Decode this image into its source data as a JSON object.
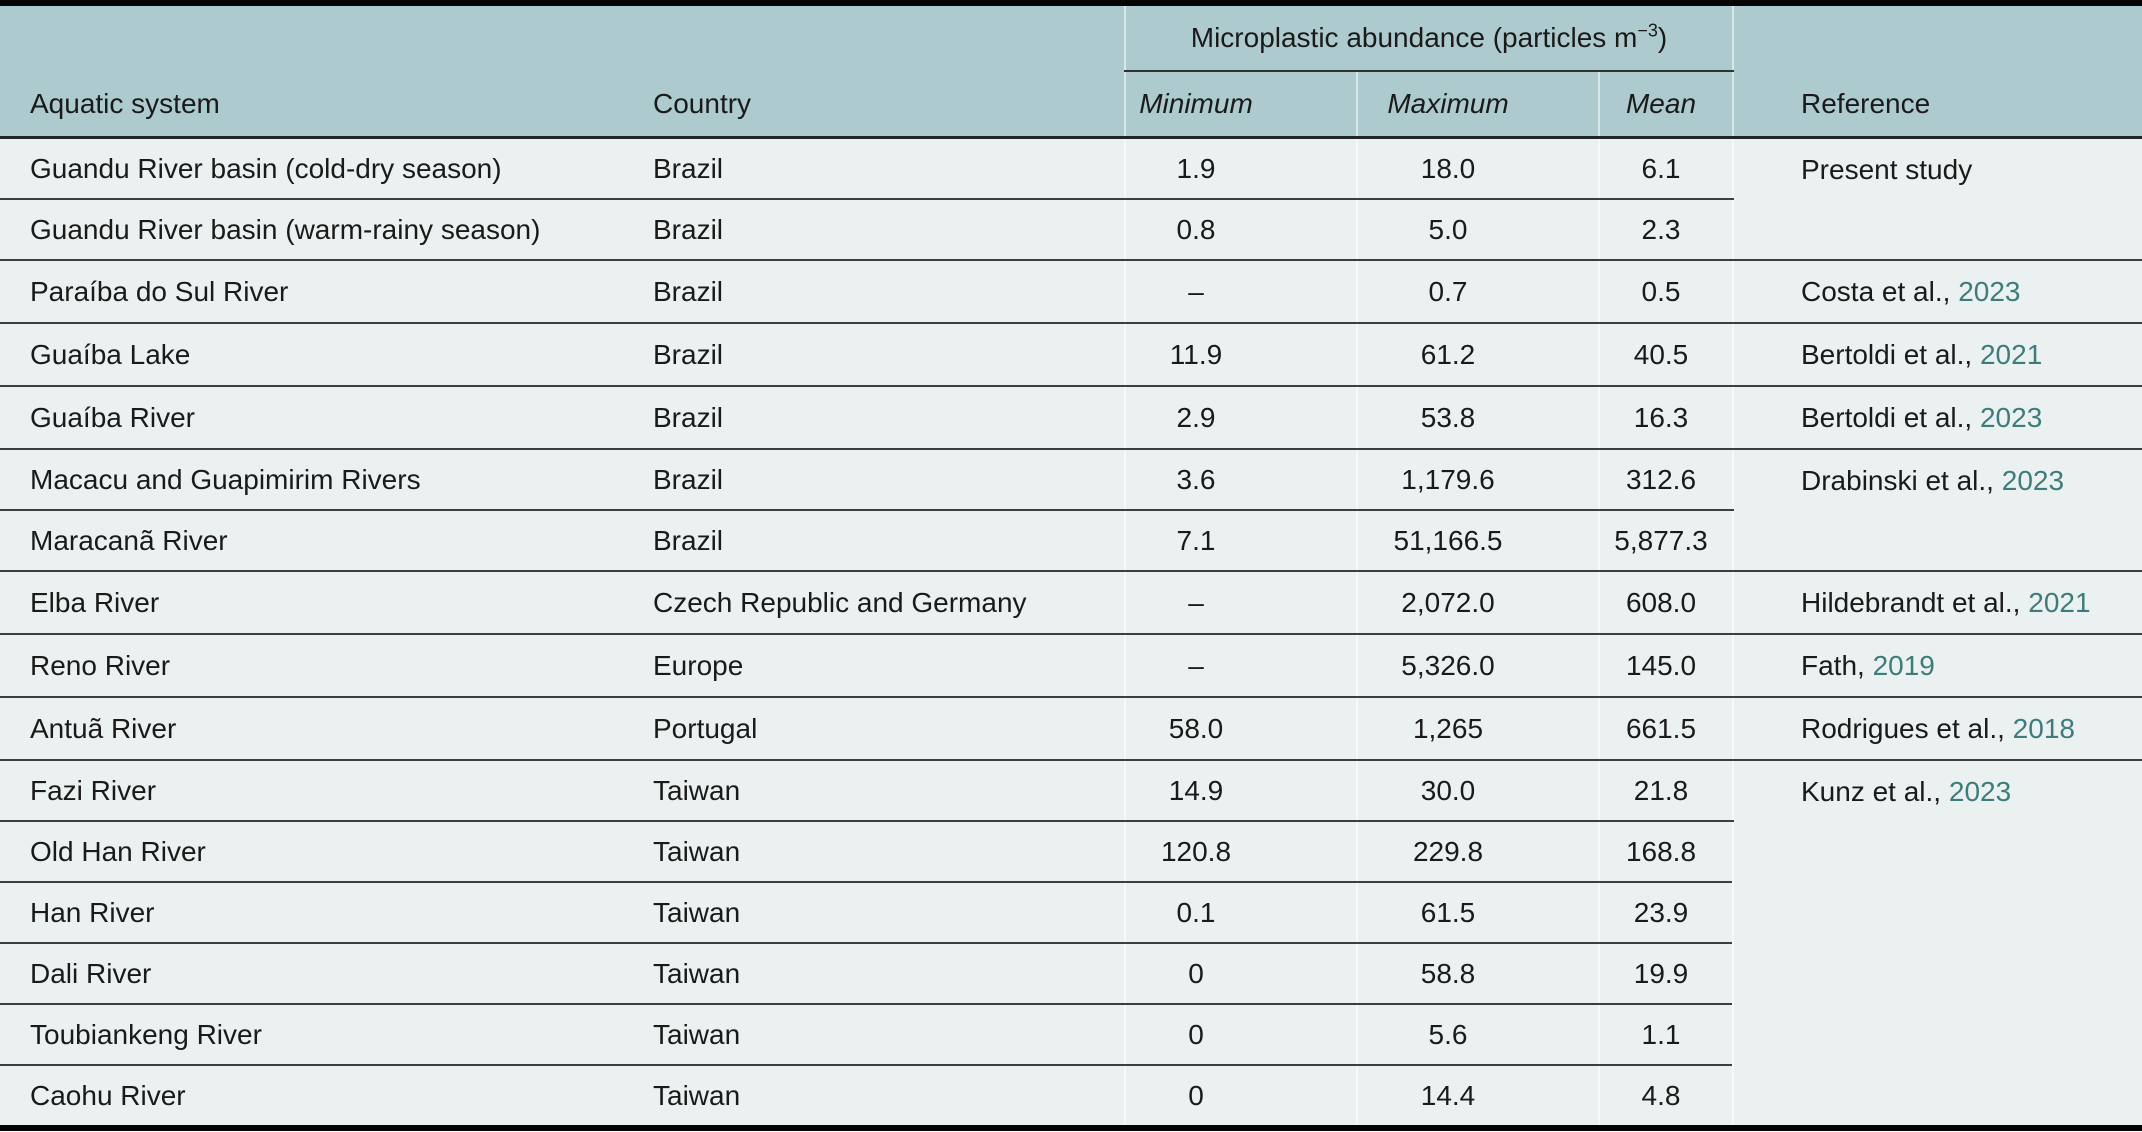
{
  "table": {
    "group_header": {
      "prefix": "Microplastic abundance (particles m",
      "superscript": "−3",
      "suffix": ")"
    },
    "columns": {
      "system": "Aquatic system",
      "country": "Country",
      "min": "Minimum",
      "max": "Maximum",
      "mean": "Mean",
      "reference": "Reference"
    },
    "colors": {
      "header_bg": "#adcbce",
      "body_bg": "#eaf1f0",
      "rule": "#3b3f42",
      "outer_border": "#050505",
      "citation_year_link": "#3e7c7c",
      "text": "#1a1a1a"
    },
    "rows": [
      {
        "system": "Guandu River basin (cold-dry season)",
        "country": "Brazil",
        "min": "1.9",
        "max": "18.0",
        "mean": "6.1",
        "reference": {
          "label": "Present study",
          "year": "",
          "rowspan": 2
        }
      },
      {
        "system": "Guandu River basin (warm-rainy season)",
        "country": "Brazil",
        "min": "0.8",
        "max": "5.0",
        "mean": "2.3",
        "reference": null
      },
      {
        "system": "Paraíba do Sul River",
        "country": "Brazil",
        "min": "–",
        "max": "0.7",
        "mean": "0.5",
        "reference": {
          "label": "Costa et al.,",
          "year": "2023",
          "rowspan": 1
        }
      },
      {
        "system": "Guaíba Lake",
        "country": "Brazil",
        "min": "11.9",
        "max": "61.2",
        "mean": "40.5",
        "reference": {
          "label": "Bertoldi et al.,",
          "year": "2021",
          "rowspan": 1
        }
      },
      {
        "system": "Guaíba River",
        "country": "Brazil",
        "min": "2.9",
        "max": "53.8",
        "mean": "16.3",
        "reference": {
          "label": "Bertoldi et al.,",
          "year": "2023",
          "rowspan": 1
        }
      },
      {
        "system": "Macacu and Guapimirim Rivers",
        "country": "Brazil",
        "min": "3.6",
        "max": "1,179.6",
        "mean": "312.6",
        "reference": {
          "label": "Drabinski et al.,",
          "year": "2023",
          "rowspan": 2
        }
      },
      {
        "system": "Maracanã River",
        "country": "Brazil",
        "min": "7.1",
        "max": "51,166.5",
        "mean": "5,877.3",
        "reference": null
      },
      {
        "system": "Elba River",
        "country": "Czech Republic and Germany",
        "min": "–",
        "max": "2,072.0",
        "mean": "608.0",
        "reference": {
          "label": "Hildebrandt et al.,",
          "year": "2021",
          "rowspan": 1
        }
      },
      {
        "system": "Reno River",
        "country": "Europe",
        "min": "–",
        "max": "5,326.0",
        "mean": "145.0",
        "reference": {
          "label": "Fath,",
          "year": "2019",
          "rowspan": 1
        }
      },
      {
        "system": "Antuã River",
        "country": "Portugal",
        "min": "58.0",
        "max": "1,265",
        "mean": "661.5",
        "reference": {
          "label": "Rodrigues et al.,",
          "year": "2018",
          "rowspan": 1
        }
      },
      {
        "system": "Fazi River",
        "country": "Taiwan",
        "min": "14.9",
        "max": "30.0",
        "mean": "21.8",
        "reference": {
          "label": "Kunz et al.,",
          "year": "2023",
          "rowspan": 6
        }
      },
      {
        "system": "Old Han River",
        "country": "Taiwan",
        "min": "120.8",
        "max": "229.8",
        "mean": "168.8",
        "reference": null
      },
      {
        "system": "Han River",
        "country": "Taiwan",
        "min": "0.1",
        "max": "61.5",
        "mean": "23.9",
        "reference": null
      },
      {
        "system": "Dali River",
        "country": "Taiwan",
        "min": "0",
        "max": "58.8",
        "mean": "19.9",
        "reference": null
      },
      {
        "system": "Toubiankeng River",
        "country": "Taiwan",
        "min": "0",
        "max": "5.6",
        "mean": "1.1",
        "reference": null
      },
      {
        "system": "Caohu River",
        "country": "Taiwan",
        "min": "0",
        "max": "14.4",
        "mean": "4.8",
        "reference": null
      }
    ]
  }
}
